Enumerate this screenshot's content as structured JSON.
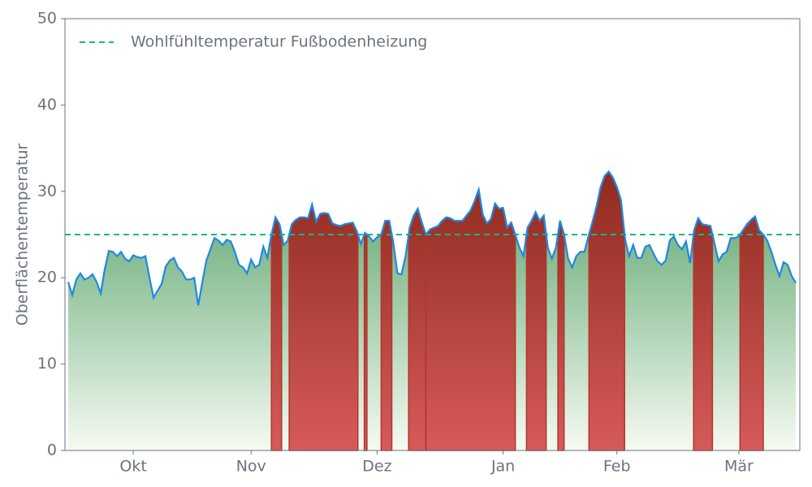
{
  "chart_data": {
    "type": "line",
    "y_label": "Oberflächentemperatur",
    "categories": [
      null,
      null,
      null,
      null,
      null,
      null,
      null,
      null,
      null,
      null,
      null,
      null,
      null,
      null,
      null,
      null,
      "Okt",
      null,
      null,
      null,
      null,
      null,
      null,
      null,
      null,
      null,
      null,
      null,
      null,
      null,
      null,
      null,
      null,
      null,
      null,
      null,
      null,
      null,
      null,
      null,
      null,
      null,
      null,
      null,
      null,
      "Nov",
      null,
      null,
      null,
      null,
      null,
      null,
      null,
      null,
      null,
      null,
      null,
      null,
      null,
      null,
      null,
      null,
      null,
      null,
      null,
      null,
      null,
      null,
      null,
      null,
      null,
      null,
      null,
      null,
      null,
      null,
      "Dez",
      null,
      null,
      null,
      null,
      null,
      null,
      null,
      null,
      null,
      null,
      null,
      null,
      null,
      null,
      null,
      null,
      null,
      null,
      null,
      null,
      null,
      null,
      null,
      null,
      null,
      null,
      null,
      null,
      null,
      null,
      "Jan",
      null,
      null,
      null,
      null,
      null,
      null,
      null,
      null,
      null,
      null,
      null,
      null,
      null,
      null,
      null,
      null,
      null,
      null,
      null,
      null,
      null,
      null,
      null,
      null,
      null,
      null,
      null,
      "Feb",
      null,
      null,
      null,
      null,
      null,
      null,
      null,
      null,
      null,
      null,
      null,
      null,
      null,
      null,
      null,
      null,
      null,
      null,
      null,
      null,
      null,
      null,
      null,
      null,
      null,
      null,
      null,
      null,
      null,
      "Mär",
      null,
      null,
      null,
      null,
      null,
      null,
      null,
      null,
      null,
      null,
      null,
      null,
      null,
      null
    ],
    "series": [
      {
        "color": "#1e88e5",
        "values": [
          19.5,
          18,
          19.8,
          20.5,
          19.8,
          20,
          20.4,
          19.5,
          18.2,
          21,
          23.1,
          23,
          22.5,
          23,
          22.2,
          21.9,
          22.6,
          22.4,
          22.3,
          22.5,
          20,
          17.7,
          18.5,
          19.3,
          21.3,
          22,
          22.3,
          21.2,
          20.7,
          19.8,
          19.8,
          20,
          16.8,
          19.5,
          22,
          23.3,
          24.6,
          24.3,
          23.8,
          24.4,
          24.2,
          23,
          21.5,
          21.2,
          20.5,
          22.1,
          21.2,
          21.5,
          23.6,
          22.3,
          25,
          27,
          26.2,
          23.8,
          24.3,
          26.2,
          26.7,
          27,
          27,
          26.9,
          28.5,
          26.5,
          27.4,
          27.5,
          27.4,
          26.3,
          26.1,
          26,
          26.2,
          26.3,
          26.4,
          25.4,
          23.9,
          25.2,
          24.8,
          24.2,
          24.7,
          25,
          26.6,
          26.6,
          24,
          20.5,
          20.4,
          22.5,
          25.8,
          27.2,
          28,
          26.4,
          25,
          25.6,
          25.8,
          26,
          26.6,
          27,
          26.9,
          26.6,
          26.6,
          26.6,
          27.2,
          27.8,
          28.9,
          30.2,
          27.3,
          26.3,
          26.8,
          28.6,
          28,
          28.1,
          25.8,
          26.4,
          25,
          23.5,
          22.5,
          25.8,
          26.6,
          27.6,
          26.6,
          27.2,
          23.5,
          22.2,
          23.5,
          26.6,
          25,
          22.2,
          21.2,
          22.5,
          23,
          23,
          24.8,
          26.5,
          28.3,
          30.5,
          31.8,
          32.3,
          31.6,
          30.5,
          29,
          24.5,
          22.5,
          23.8,
          22.3,
          22.3,
          23.6,
          23.8,
          22.8,
          21.9,
          21.5,
          22,
          24.3,
          24.8,
          23.8,
          23.3,
          24.2,
          21.7,
          25.5,
          26.9,
          26.2,
          26.1,
          26,
          24,
          21.9,
          22.7,
          23,
          24.6,
          24.6,
          24.8,
          25.5,
          26.2,
          26.7,
          27.1,
          25.5,
          25,
          24.3,
          23,
          21.5,
          20.2,
          21.8,
          21.5,
          20.2,
          19.4
        ]
      }
    ],
    "threshold": {
      "name": "Wohlfühltemperatur Fußbodenheizung",
      "value": 25,
      "color": "#12b886",
      "style": "dashed"
    },
    "below_fill_color": "#5aa46a",
    "above_fill_color": "#b3342a",
    "ylim": [
      0,
      50
    ],
    "yticks": [
      0,
      10,
      20,
      30,
      40,
      50
    ],
    "grid": false,
    "legend": "upper left"
  }
}
